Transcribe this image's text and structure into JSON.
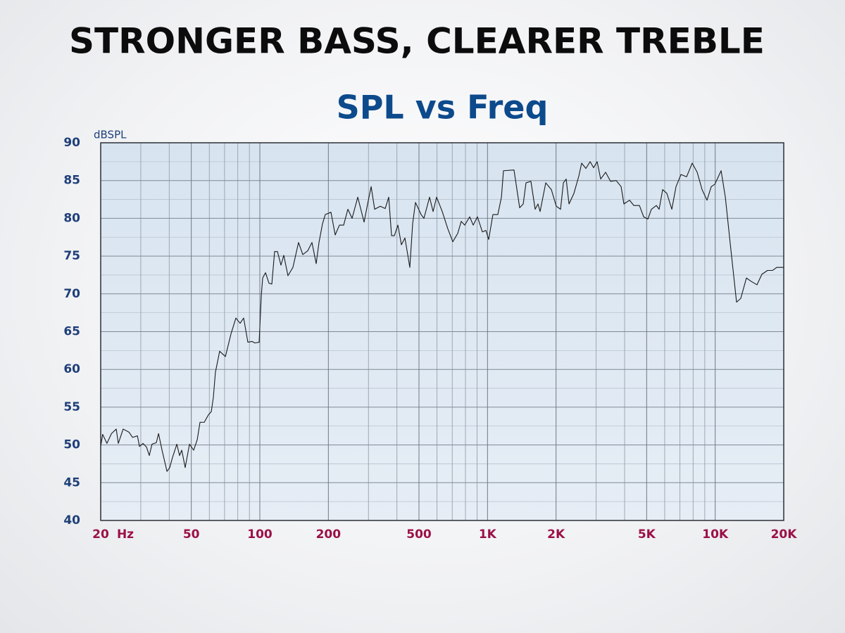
{
  "header": {
    "title": "STRONGER BASS, CLEARER TREBLE"
  },
  "chart_data": {
    "type": "line",
    "title": "SPL vs Freq",
    "ylabel": "dBSPL",
    "x_unit_label": "Hz",
    "xscale": "log",
    "grid": true,
    "color": "#1a1a1a",
    "xlim": [
      20,
      20000
    ],
    "xticks": [
      20,
      50,
      100,
      200,
      500,
      {
        "value": 1000,
        "label": "1K"
      },
      {
        "value": 2000,
        "label": "2K"
      },
      {
        "value": 5000,
        "label": "5K"
      },
      {
        "value": 10000,
        "label": "10K"
      },
      {
        "value": 20000,
        "label": "20K"
      }
    ],
    "ylim": [
      40,
      90
    ],
    "yticks": [
      40,
      45,
      50,
      55,
      60,
      65,
      70,
      75,
      80,
      85,
      90
    ],
    "x": [
      20,
      20.4,
      21.3,
      22.3,
      23.4,
      23.9,
      25.1,
      26.6,
      27.6,
      29.0,
      29.6,
      30.7,
      31.8,
      32.7,
      33.6,
      35.1,
      35.9,
      37.2,
      39.1,
      40.2,
      41.4,
      43.2,
      44.4,
      45.4,
      47.0,
      49.1,
      51.2,
      53.1,
      54.6,
      57.0,
      59.5,
      61.2,
      62.5,
      63.8,
      66.6,
      70.6,
      74.7,
      78.5,
      81.9,
      84.9,
      88.6,
      92.5,
      95.1,
      99.3,
      101.5,
      102.9,
      105.9,
      109.7,
      112.9,
      116.1,
      119.5,
      123.8,
      127.4,
      132.9,
      139.7,
      147.9,
      154.4,
      162.3,
      169.4,
      176.8,
      181.9,
      188.5,
      193.9,
      205.3,
      214.3,
      223.7,
      233.4,
      243.6,
      254.2,
      269.2,
      287.0,
      297.4,
      308.2,
      319.4,
      338.1,
      355.3,
      368.2,
      378.9,
      389.9,
      404.0,
      418.6,
      433.8,
      455.8,
      469.0,
      482.6,
      510.8,
      525.7,
      556.4,
      576.6,
      597.5,
      632.5,
      669.6,
      703.9,
      739.9,
      766.6,
      794.4,
      835.0,
      865.3,
      903.0,
      949.3,
      983.5,
      1012,
      1056,
      1110,
      1151,
      1175,
      1307,
      1384,
      1435,
      1476,
      1551,
      1619,
      1666,
      1702,
      1802,
      1907,
      2005,
      2093,
      2154,
      2215,
      2280,
      2396,
      2518,
      2591,
      2704,
      2823,
      2924,
      3030,
      3140,
      3301,
      3470,
      3673,
      3861,
      3973,
      4206,
      4390,
      4647,
      4850,
      5062,
      5245,
      5513,
      5672,
      5877,
      6134,
      6448,
      6729,
      7075,
      7488,
      7925,
      8333,
      8758,
      9207,
      9608,
      9956,
      10617,
      11079,
      11724,
      12409,
      12950,
      13712,
      14312,
      15258,
      16040,
      16978,
      17848,
      18625,
      20000
    ],
    "values": [
      49.8,
      51.4,
      50.2,
      51.5,
      52.1,
      50.2,
      52.1,
      51.7,
      51.0,
      51.2,
      49.8,
      50.2,
      49.7,
      48.6,
      50.1,
      50.3,
      51.5,
      49.3,
      46.5,
      47.0,
      48.4,
      50.1,
      48.6,
      49.3,
      47.0,
      50.1,
      49.3,
      50.7,
      53.0,
      53.0,
      54.0,
      54.4,
      56.3,
      59.6,
      62.4,
      61.7,
      64.7,
      66.8,
      66.1,
      66.8,
      63.6,
      63.7,
      63.5,
      63.6,
      69.8,
      72.1,
      72.8,
      71.4,
      71.3,
      75.6,
      75.6,
      73.8,
      75.1,
      72.4,
      73.5,
      76.8,
      75.2,
      75.7,
      76.8,
      74.0,
      76.8,
      79.3,
      80.5,
      80.8,
      77.8,
      79.1,
      79.1,
      81.2,
      80.0,
      82.8,
      79.5,
      81.9,
      84.2,
      81.2,
      81.6,
      81.3,
      82.8,
      77.7,
      77.7,
      79.1,
      76.5,
      77.4,
      73.5,
      79.3,
      82.1,
      80.5,
      80.0,
      82.8,
      80.9,
      82.8,
      80.9,
      78.6,
      76.9,
      78.0,
      79.6,
      79.1,
      80.2,
      79.1,
      80.2,
      78.2,
      78.4,
      77.2,
      80.5,
      80.5,
      82.8,
      86.3,
      86.4,
      81.4,
      81.9,
      84.7,
      84.9,
      81.2,
      81.9,
      80.9,
      84.7,
      83.8,
      81.6,
      81.2,
      84.7,
      85.2,
      81.9,
      83.3,
      85.6,
      87.3,
      86.6,
      87.5,
      86.7,
      87.5,
      85.2,
      86.1,
      84.9,
      85.0,
      84.2,
      81.9,
      82.4,
      81.7,
      81.7,
      80.2,
      79.9,
      81.2,
      81.7,
      81.2,
      83.8,
      83.3,
      81.2,
      84.2,
      85.8,
      85.5,
      87.3,
      86.1,
      83.8,
      82.4,
      84.2,
      84.5,
      86.3,
      82.8,
      75.8,
      68.9,
      69.4,
      72.1,
      71.7,
      71.2,
      72.6,
      73.1,
      73.1,
      73.5,
      73.5
    ]
  }
}
